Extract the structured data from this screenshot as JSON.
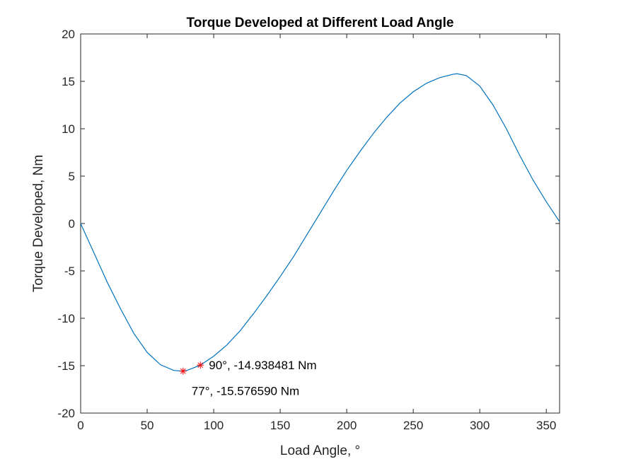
{
  "chart_data": {
    "type": "line",
    "title": "Torque Developed at Different Load Angle",
    "xlabel": "Load Angle, °",
    "ylabel": "Torque Developed, Nm",
    "xlim": [
      0,
      360
    ],
    "ylim": [
      -20,
      20
    ],
    "xticks": [
      0,
      50,
      100,
      150,
      200,
      250,
      300,
      350
    ],
    "yticks": [
      20,
      15,
      10,
      5,
      0,
      -5,
      -10,
      -15,
      -20
    ],
    "grid": false,
    "series": [
      {
        "name": "Torque",
        "color": "#0072BD",
        "x": [
          0,
          10,
          20,
          30,
          40,
          50,
          60,
          70,
          77,
          80,
          90,
          100,
          110,
          120,
          130,
          140,
          150,
          160,
          170,
          180,
          190,
          200,
          210,
          220,
          230,
          240,
          250,
          260,
          270,
          280,
          283,
          290,
          300,
          310,
          320,
          330,
          340,
          350,
          360
        ],
        "values": [
          0,
          -3.1,
          -6.2,
          -9.0,
          -11.6,
          -13.6,
          -14.9,
          -15.5,
          -15.58,
          -15.5,
          -14.94,
          -14.0,
          -12.8,
          -11.3,
          -9.5,
          -7.6,
          -5.6,
          -3.5,
          -1.2,
          1.1,
          3.4,
          5.6,
          7.6,
          9.5,
          11.2,
          12.7,
          13.9,
          14.8,
          15.4,
          15.75,
          15.8,
          15.6,
          14.5,
          12.5,
          10.0,
          7.2,
          4.6,
          2.3,
          0.2
        ]
      }
    ],
    "markers": [
      {
        "x": 77,
        "y": -15.57659,
        "color": "#FF0000",
        "label": "77°, -15.576590 Nm",
        "label_side": "below"
      },
      {
        "x": 90,
        "y": -14.938481,
        "color": "#FF0000",
        "label": "90°, -14.938481 Nm",
        "label_side": "right"
      }
    ]
  }
}
